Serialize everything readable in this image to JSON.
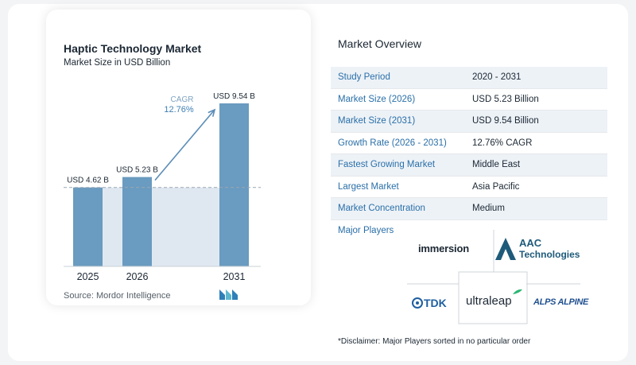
{
  "chart_data": {
    "type": "bar",
    "title": "Haptic Technology Market",
    "subtitle": "Market Size in USD Billion",
    "categories": [
      "2025",
      "2026",
      "2031"
    ],
    "values": [
      4.62,
      5.23,
      9.54
    ],
    "data_labels": [
      "USD 4.62 B",
      "USD 5.23 B",
      "USD 9.54 B"
    ],
    "cagr_label": "CAGR",
    "cagr_value": "12.76%",
    "ylim": [
      0,
      10
    ],
    "grid": false,
    "colors": {
      "bar": "#6a9bc0",
      "shade": "#dfe8f1",
      "dashed": "#9aa6b2",
      "arrow": "#5b8db7"
    }
  },
  "source": "Source: Mordor Intelligence",
  "overview": {
    "title": "Market Overview",
    "rows": [
      {
        "key": "Study Period",
        "value": "2020 - 2031"
      },
      {
        "key": "Market Size (2026)",
        "value": "USD 5.23 Billion"
      },
      {
        "key": "Market Size (2031)",
        "value": "USD 9.54 Billion"
      },
      {
        "key": "Growth Rate (2026 - 2031)",
        "value": "12.76% CAGR"
      },
      {
        "key": "Fastest Growing Market",
        "value": "Middle East"
      },
      {
        "key": "Largest Market",
        "value": "Asia Pacific"
      },
      {
        "key": "Market Concentration",
        "value": "Medium"
      }
    ],
    "players_label": "Major Players",
    "players": [
      "immersion",
      "AAC",
      "Technologies",
      "TDK",
      "ultraleap",
      "ALPS ALPINE"
    ],
    "disclaimer": "*Disclaimer: Major Players sorted in no particular order"
  }
}
